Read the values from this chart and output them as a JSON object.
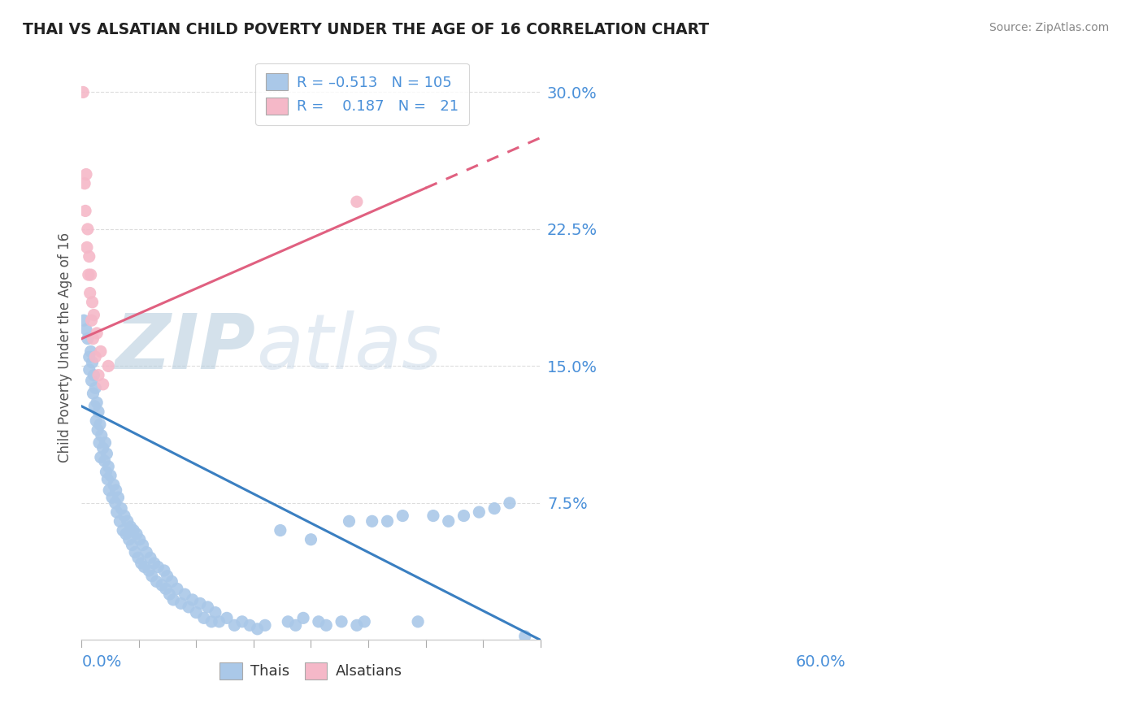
{
  "title": "THAI VS ALSATIAN CHILD POVERTY UNDER THE AGE OF 16 CORRELATION CHART",
  "source": "Source: ZipAtlas.com",
  "ylabel": "Child Poverty Under the Age of 16",
  "yticklabels": [
    "7.5%",
    "15.0%",
    "22.5%",
    "30.0%"
  ],
  "yticks": [
    0.075,
    0.15,
    0.225,
    0.3
  ],
  "xmin": 0.0,
  "xmax": 0.6,
  "ymin": 0.0,
  "ymax": 0.32,
  "blue_color": "#aac8e8",
  "pink_color": "#f5b8c8",
  "blue_line_color": "#3a7fc1",
  "pink_line_color": "#e06080",
  "axis_label_color": "#4a90d9",
  "watermark_color": "#ccd8e8",
  "blue_line_x0": 0.0,
  "blue_line_y0": 0.128,
  "blue_line_x1": 0.6,
  "blue_line_y1": 0.0,
  "pink_line_x0": 0.0,
  "pink_line_y0": 0.165,
  "pink_line_x1": 0.6,
  "pink_line_y1": 0.275,
  "thai_points": [
    [
      0.003,
      0.175
    ],
    [
      0.006,
      0.17
    ],
    [
      0.008,
      0.165
    ],
    [
      0.01,
      0.155
    ],
    [
      0.01,
      0.148
    ],
    [
      0.012,
      0.158
    ],
    [
      0.013,
      0.142
    ],
    [
      0.014,
      0.152
    ],
    [
      0.015,
      0.135
    ],
    [
      0.016,
      0.145
    ],
    [
      0.017,
      0.128
    ],
    [
      0.018,
      0.138
    ],
    [
      0.019,
      0.12
    ],
    [
      0.02,
      0.13
    ],
    [
      0.021,
      0.115
    ],
    [
      0.022,
      0.125
    ],
    [
      0.023,
      0.108
    ],
    [
      0.024,
      0.118
    ],
    [
      0.025,
      0.1
    ],
    [
      0.026,
      0.112
    ],
    [
      0.028,
      0.105
    ],
    [
      0.03,
      0.098
    ],
    [
      0.031,
      0.108
    ],
    [
      0.032,
      0.092
    ],
    [
      0.033,
      0.102
    ],
    [
      0.034,
      0.088
    ],
    [
      0.035,
      0.095
    ],
    [
      0.036,
      0.082
    ],
    [
      0.038,
      0.09
    ],
    [
      0.04,
      0.078
    ],
    [
      0.042,
      0.085
    ],
    [
      0.044,
      0.075
    ],
    [
      0.045,
      0.082
    ],
    [
      0.046,
      0.07
    ],
    [
      0.048,
      0.078
    ],
    [
      0.05,
      0.065
    ],
    [
      0.052,
      0.072
    ],
    [
      0.054,
      0.06
    ],
    [
      0.056,
      0.068
    ],
    [
      0.058,
      0.058
    ],
    [
      0.06,
      0.065
    ],
    [
      0.062,
      0.055
    ],
    [
      0.064,
      0.062
    ],
    [
      0.066,
      0.052
    ],
    [
      0.068,
      0.06
    ],
    [
      0.07,
      0.048
    ],
    [
      0.072,
      0.058
    ],
    [
      0.074,
      0.045
    ],
    [
      0.076,
      0.055
    ],
    [
      0.078,
      0.042
    ],
    [
      0.08,
      0.052
    ],
    [
      0.082,
      0.04
    ],
    [
      0.085,
      0.048
    ],
    [
      0.088,
      0.038
    ],
    [
      0.09,
      0.045
    ],
    [
      0.092,
      0.035
    ],
    [
      0.095,
      0.042
    ],
    [
      0.098,
      0.032
    ],
    [
      0.1,
      0.04
    ],
    [
      0.105,
      0.03
    ],
    [
      0.108,
      0.038
    ],
    [
      0.11,
      0.028
    ],
    [
      0.112,
      0.035
    ],
    [
      0.115,
      0.025
    ],
    [
      0.118,
      0.032
    ],
    [
      0.12,
      0.022
    ],
    [
      0.125,
      0.028
    ],
    [
      0.13,
      0.02
    ],
    [
      0.135,
      0.025
    ],
    [
      0.14,
      0.018
    ],
    [
      0.145,
      0.022
    ],
    [
      0.15,
      0.015
    ],
    [
      0.155,
      0.02
    ],
    [
      0.16,
      0.012
    ],
    [
      0.165,
      0.018
    ],
    [
      0.17,
      0.01
    ],
    [
      0.175,
      0.015
    ],
    [
      0.18,
      0.01
    ],
    [
      0.19,
      0.012
    ],
    [
      0.2,
      0.008
    ],
    [
      0.21,
      0.01
    ],
    [
      0.22,
      0.008
    ],
    [
      0.23,
      0.006
    ],
    [
      0.24,
      0.008
    ],
    [
      0.26,
      0.06
    ],
    [
      0.27,
      0.01
    ],
    [
      0.28,
      0.008
    ],
    [
      0.29,
      0.012
    ],
    [
      0.3,
      0.055
    ],
    [
      0.31,
      0.01
    ],
    [
      0.32,
      0.008
    ],
    [
      0.34,
      0.01
    ],
    [
      0.35,
      0.065
    ],
    [
      0.36,
      0.008
    ],
    [
      0.37,
      0.01
    ],
    [
      0.38,
      0.065
    ],
    [
      0.4,
      0.065
    ],
    [
      0.42,
      0.068
    ],
    [
      0.44,
      0.01
    ],
    [
      0.46,
      0.068
    ],
    [
      0.48,
      0.065
    ],
    [
      0.5,
      0.068
    ],
    [
      0.52,
      0.07
    ],
    [
      0.54,
      0.072
    ],
    [
      0.56,
      0.075
    ],
    [
      0.58,
      0.002
    ]
  ],
  "alsatian_points": [
    [
      0.002,
      0.3
    ],
    [
      0.004,
      0.25
    ],
    [
      0.005,
      0.235
    ],
    [
      0.006,
      0.255
    ],
    [
      0.007,
      0.215
    ],
    [
      0.008,
      0.225
    ],
    [
      0.009,
      0.2
    ],
    [
      0.01,
      0.21
    ],
    [
      0.011,
      0.19
    ],
    [
      0.012,
      0.2
    ],
    [
      0.013,
      0.175
    ],
    [
      0.014,
      0.185
    ],
    [
      0.015,
      0.165
    ],
    [
      0.016,
      0.178
    ],
    [
      0.018,
      0.155
    ],
    [
      0.02,
      0.168
    ],
    [
      0.022,
      0.145
    ],
    [
      0.025,
      0.158
    ],
    [
      0.028,
      0.14
    ],
    [
      0.035,
      0.15
    ],
    [
      0.36,
      0.24
    ]
  ]
}
